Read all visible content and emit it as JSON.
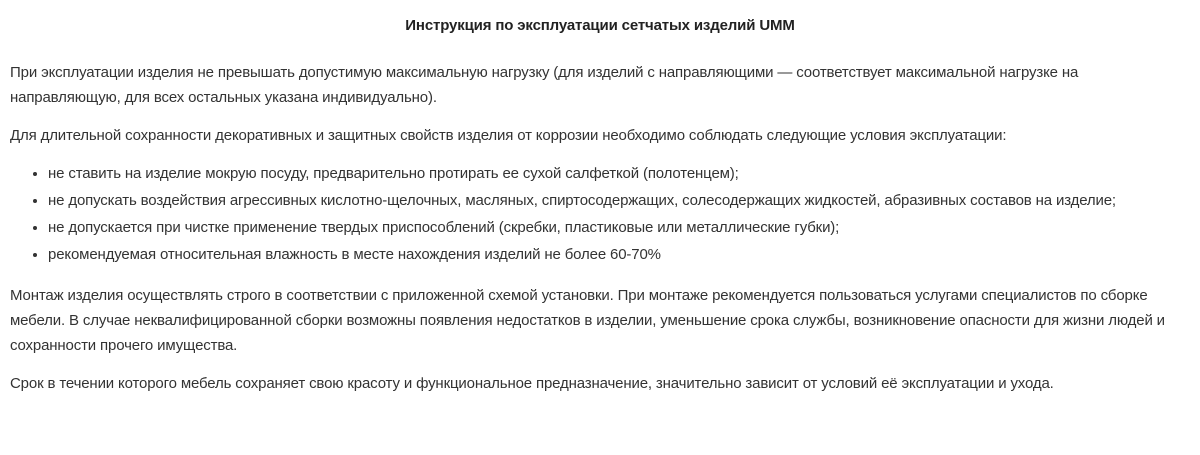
{
  "title": "Инструкция по эксплуатации сетчатых изделий UMM",
  "paragraphs": [
    "При эксплуатации изделия не превышать допустимую максимальную нагрузку (для изделий с направляющими — соответствует максимальной нагрузке на направляющую, для всех остальных указана индивидуально).",
    "Для длительной сохранности декоративных и защитных свойств изделия от коррозии необходимо соблюдать следующие условия эксплуатации:",
    "Монтаж изделия осуществлять строго в соответствии с приложенной схемой установки. При монтаже рекомендуется пользоваться услугами специалистов по сборке мебели. В случае неквалифицированной сборки возможны появления недостатков в изделии, уменьшение срока службы, возникновение опасности для жизни людей и сохранности прочего имущества.",
    "Срок в течении которого мебель сохраняет свою красоту и функциональное предназначение, значительно зависит от условий её эксплуатации и ухода."
  ],
  "conditions": [
    "не ставить на изделие мокрую посуду, предварительно протирать ее сухой салфеткой (полотенцем);",
    "не допускать воздействия агрессивных кислотно-щелочных, масляных, спиртосодержащих, солесодержащих жидкостей, абразивных составов на изделие;",
    "не допускается при чистке применение твердых приспособлений (скребки, пластиковые или металлические губки);",
    "рекомендуемая относительная влажность в месте нахождения изделий не более 60-70%"
  ]
}
